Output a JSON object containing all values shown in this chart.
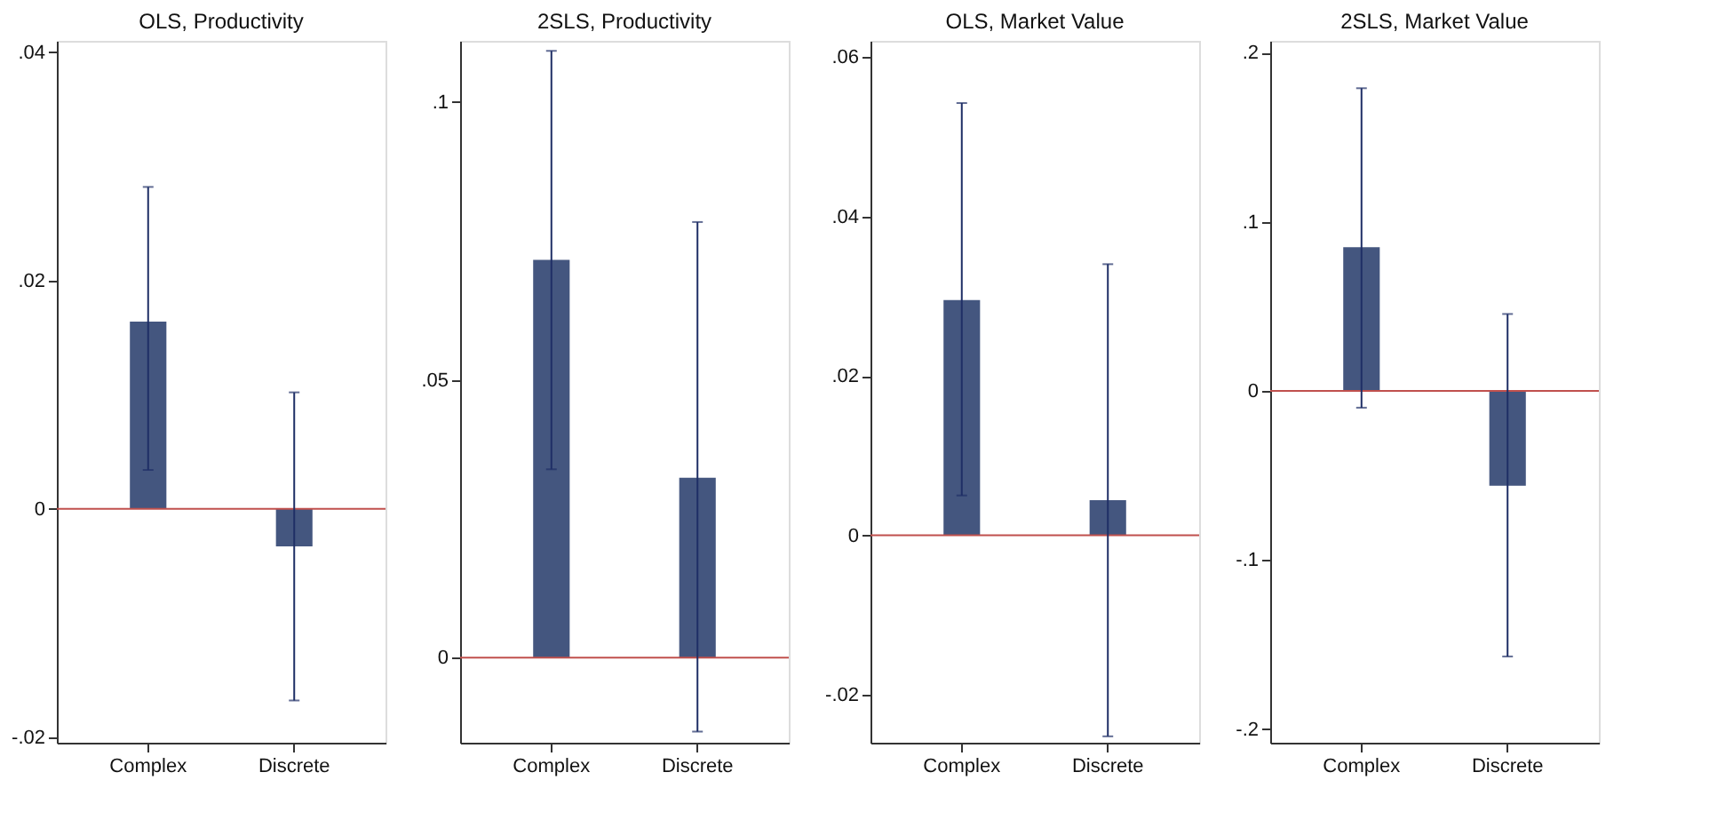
{
  "chart_data": [
    {
      "type": "bar",
      "title": "OLS, Productivity",
      "categories": [
        "Complex",
        "Discrete"
      ],
      "values": [
        0.0164,
        -0.0033
      ],
      "errors": [
        [
          0.0034,
          0.0282
        ],
        [
          -0.0168,
          0.0102
        ]
      ],
      "color": "#44567f",
      "ylim": [
        -0.0205,
        0.041
      ],
      "yticks": [
        {
          "value": -0.02,
          "label": "-.02"
        },
        {
          "value": 0,
          "label": "0"
        },
        {
          "value": 0.02,
          "label": ".02"
        },
        {
          "value": 0.04,
          "label": ".04"
        }
      ],
      "grid": false,
      "ref_lines": [
        {
          "axis": "y",
          "value": 0,
          "color": "#c0504d"
        }
      ]
    },
    {
      "type": "bar",
      "title": "2SLS, Productivity",
      "categories": [
        "Complex",
        "Discrete"
      ],
      "values": [
        0.0716,
        0.0324
      ],
      "errors": [
        [
          0.0339,
          0.1092
        ],
        [
          -0.0133,
          0.0784
        ]
      ],
      "color": "#44567f",
      "ylim": [
        -0.0153,
        0.111
      ],
      "yticks": [
        {
          "value": 0,
          "label": "0"
        },
        {
          "value": 0.05,
          "label": ".05"
        },
        {
          "value": 0.1,
          "label": ".1"
        }
      ],
      "grid": false,
      "ref_lines": [
        {
          "axis": "y",
          "value": 0,
          "color": "#c0504d"
        }
      ]
    },
    {
      "type": "bar",
      "title": "OLS, Market Value",
      "categories": [
        "Complex",
        "Discrete"
      ],
      "values": [
        0.0295,
        0.0044
      ],
      "errors": [
        [
          0.005,
          0.0542
        ],
        [
          -0.0252,
          0.034
        ]
      ],
      "color": "#44567f",
      "ylim": [
        -0.026,
        0.062
      ],
      "yticks": [
        {
          "value": -0.02,
          "label": "-.02"
        },
        {
          "value": 0,
          "label": "0"
        },
        {
          "value": 0.02,
          "label": ".02"
        },
        {
          "value": 0.04,
          "label": ".04"
        },
        {
          "value": 0.06,
          "label": ".06"
        }
      ],
      "grid": false,
      "ref_lines": [
        {
          "axis": "y",
          "value": 0,
          "color": "#c0504d"
        }
      ]
    },
    {
      "type": "bar",
      "title": "2SLS, Market Value",
      "categories": [
        "Complex",
        "Discrete"
      ],
      "values": [
        0.085,
        -0.056
      ],
      "errors": [
        [
          -0.0099,
          0.179
        ],
        [
          -0.157,
          0.0455
        ]
      ],
      "color": "#44567f",
      "ylim": [
        -0.208,
        0.207
      ],
      "yticks": [
        {
          "value": -0.2,
          "label": "-.2"
        },
        {
          "value": -0.1,
          "label": "-.1"
        },
        {
          "value": 0,
          "label": "0"
        },
        {
          "value": 0.1,
          "label": ".1"
        },
        {
          "value": 0.2,
          "label": ".2"
        }
      ],
      "grid": false,
      "ref_lines": [
        {
          "axis": "y",
          "value": 0,
          "color": "#c0504d"
        }
      ]
    }
  ]
}
